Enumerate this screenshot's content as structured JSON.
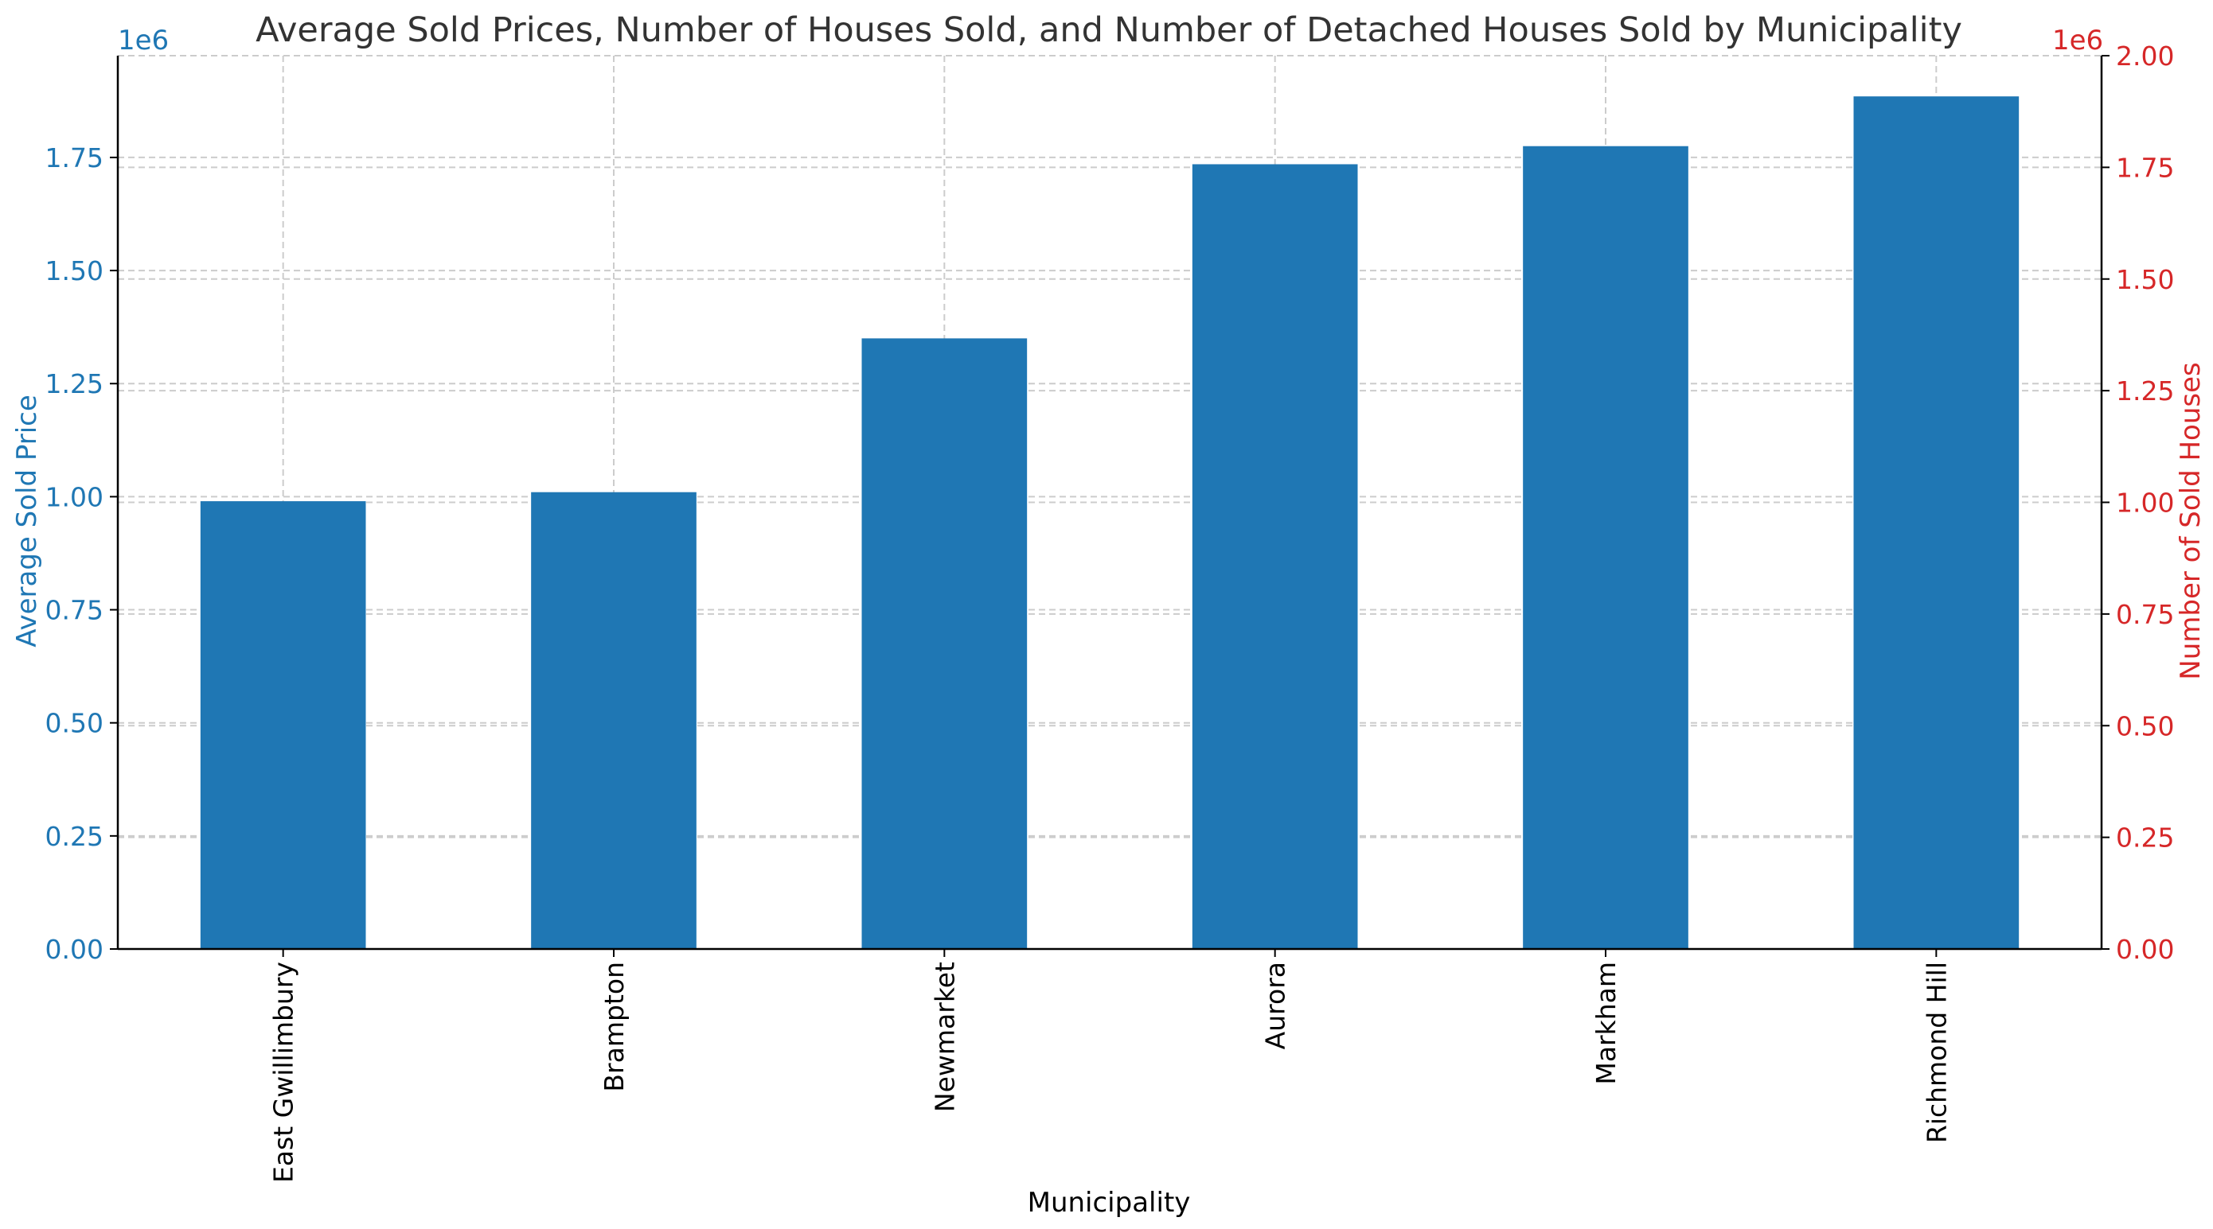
{
  "chart_data": {
    "type": "bar",
    "title": "Average Sold Prices, Number of Houses Sold, and Number of Detached Houses Sold by Municipality",
    "xlabel": "Municipality",
    "ylabel": "Average Sold Price",
    "ylabel_right": "Number of Sold Houses",
    "left_offset_label": "1e6",
    "right_offset_label": "1e6",
    "categories": [
      "East Gwillimbury",
      "Brampton",
      "Newmarket",
      "Aurora",
      "Markham",
      "Richmond Hill"
    ],
    "series": [
      {
        "name": "Average Sold Price",
        "axis": "left",
        "values": [
          990000,
          1010000,
          1350000,
          1735000,
          1775000,
          1885000
        ]
      }
    ],
    "ylim": [
      0,
      1975000
    ],
    "ylim_right": [
      0,
      2.0
    ],
    "yticks": [
      0,
      0.25,
      0.5,
      0.75,
      1.0,
      1.25,
      1.5,
      1.75
    ],
    "ytick_labels": [
      "0.00",
      "0.25",
      "0.50",
      "0.75",
      "1.00",
      "1.25",
      "1.50",
      "1.75"
    ],
    "yticks_right": [
      0,
      0.25,
      0.5,
      0.75,
      1.0,
      1.25,
      1.5,
      1.75,
      2.0
    ],
    "ytick_labels_right": [
      "0.00",
      "0.25",
      "0.50",
      "0.75",
      "1.00",
      "1.25",
      "1.50",
      "1.75",
      "2.00"
    ],
    "grid": true,
    "colors": {
      "bar": "#1f77b4",
      "left_axis": "#1f77b4",
      "right_axis": "#d62728",
      "title": "#333333",
      "grid": "#cccccc"
    }
  }
}
